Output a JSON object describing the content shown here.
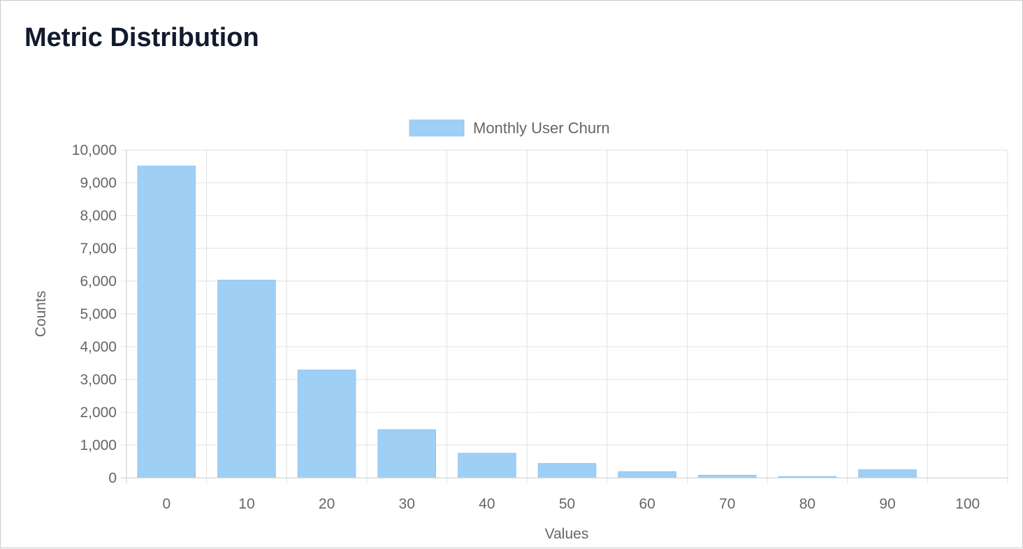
{
  "page": {
    "title": "Metric Distribution"
  },
  "chart_data": {
    "type": "bar",
    "categories": [
      "0",
      "10",
      "20",
      "30",
      "40",
      "50",
      "60",
      "70",
      "80",
      "90",
      "100"
    ],
    "series": [
      {
        "name": "Monthly User Churn",
        "values": [
          9510,
          6030,
          3290,
          1470,
          750,
          440,
          190,
          80,
          40,
          250,
          0
        ]
      }
    ],
    "title": "",
    "xlabel": "Values",
    "ylabel": "Counts",
    "ylim": [
      0,
      10000
    ],
    "ytick_step": 1000,
    "yticks": [
      "0",
      "1,000",
      "2,000",
      "3,000",
      "4,000",
      "5,000",
      "6,000",
      "7,000",
      "8,000",
      "9,000",
      "10,000"
    ],
    "grid": true,
    "legend": "top-center",
    "colors": {
      "bar_fill": "#a0cff5",
      "bar_stroke": "#8ec5f2",
      "grid": "#e2e2e2",
      "axis": "#c8c8c8",
      "text": "#666666"
    }
  }
}
